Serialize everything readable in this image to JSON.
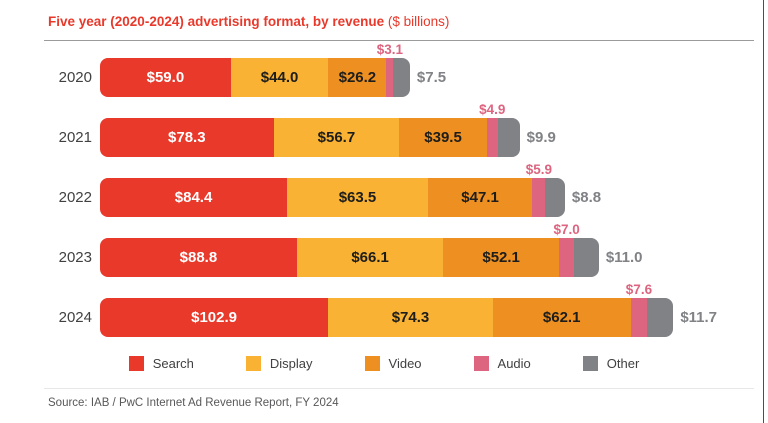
{
  "title": {
    "bold": "Five year (2020-2024) advertising format, by revenue",
    "normal": " ($ billions)"
  },
  "colors": {
    "search": "#E8392B",
    "display": "#F9B233",
    "video": "#EE9021",
    "audio": "#DD6580",
    "other": "#808285",
    "title_red": "#E8392B",
    "year_label": "#414042",
    "other_label": "#808285",
    "audio_label": "#DD6580"
  },
  "chart_data": {
    "type": "bar",
    "orientation": "horizontal",
    "stacked": true,
    "title": "Five year (2020-2024) advertising format, by revenue ($ billions)",
    "unit": "$ billions",
    "categories": [
      "2020",
      "2021",
      "2022",
      "2023",
      "2024"
    ],
    "series": [
      {
        "key": "search",
        "name": "Search",
        "values": [
          59.0,
          78.3,
          84.4,
          88.8,
          102.9
        ]
      },
      {
        "key": "display",
        "name": "Display",
        "values": [
          44.0,
          56.7,
          63.5,
          66.1,
          74.3
        ]
      },
      {
        "key": "video",
        "name": "Video",
        "values": [
          26.2,
          39.5,
          47.1,
          52.1,
          62.1
        ]
      },
      {
        "key": "audio",
        "name": "Audio",
        "values": [
          3.1,
          4.9,
          5.9,
          7.0,
          7.6
        ]
      },
      {
        "key": "other",
        "name": "Other",
        "values": [
          7.5,
          9.9,
          8.8,
          11.0,
          11.7
        ]
      }
    ],
    "totals": [
      139.8,
      189.3,
      209.7,
      225.0,
      258.6
    ],
    "xlim": [
      0,
      258.6
    ],
    "value_label_format": "$%.1f",
    "label_placement": {
      "search": "inside",
      "display": "inside",
      "video": "inside",
      "audio": "above-bar",
      "other": "right-of-bar"
    },
    "legend_position": "bottom",
    "grid": false
  },
  "legend": [
    {
      "key": "search",
      "label": "Search"
    },
    {
      "key": "display",
      "label": "Display"
    },
    {
      "key": "video",
      "label": "Video"
    },
    {
      "key": "audio",
      "label": "Audio"
    },
    {
      "key": "other",
      "label": "Other"
    }
  ],
  "source": "Source: IAB / PwC Internet Ad Revenue Report, FY 2024"
}
